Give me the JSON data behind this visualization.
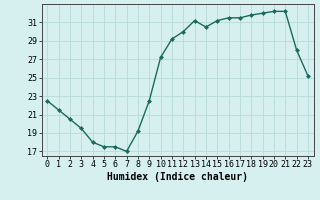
{
  "x": [
    0,
    1,
    2,
    3,
    4,
    5,
    6,
    7,
    8,
    9,
    10,
    11,
    12,
    13,
    14,
    15,
    16,
    17,
    18,
    19,
    20,
    21,
    22,
    23
  ],
  "y": [
    22.5,
    21.5,
    20.5,
    19.5,
    18.0,
    17.5,
    17.5,
    17.0,
    19.2,
    22.5,
    27.2,
    29.2,
    30.0,
    31.2,
    30.5,
    31.2,
    31.5,
    31.5,
    31.8,
    32.0,
    32.2,
    32.2,
    28.0,
    25.2
  ],
  "line_color": "#1a6b5a",
  "marker": "D",
  "markersize": 2.0,
  "linewidth": 1.0,
  "xlabel": "Humidex (Indice chaleur)",
  "ylim": [
    16.5,
    33.0
  ],
  "yticks": [
    17,
    19,
    21,
    23,
    25,
    27,
    29,
    31
  ],
  "xticks": [
    0,
    1,
    2,
    3,
    4,
    5,
    6,
    7,
    8,
    9,
    10,
    11,
    12,
    13,
    14,
    15,
    16,
    17,
    18,
    19,
    20,
    21,
    22,
    23
  ],
  "bg_color": "#d6f0f0",
  "grid_color": "#b8dada",
  "tick_fontsize": 6,
  "xlabel_fontsize": 7
}
